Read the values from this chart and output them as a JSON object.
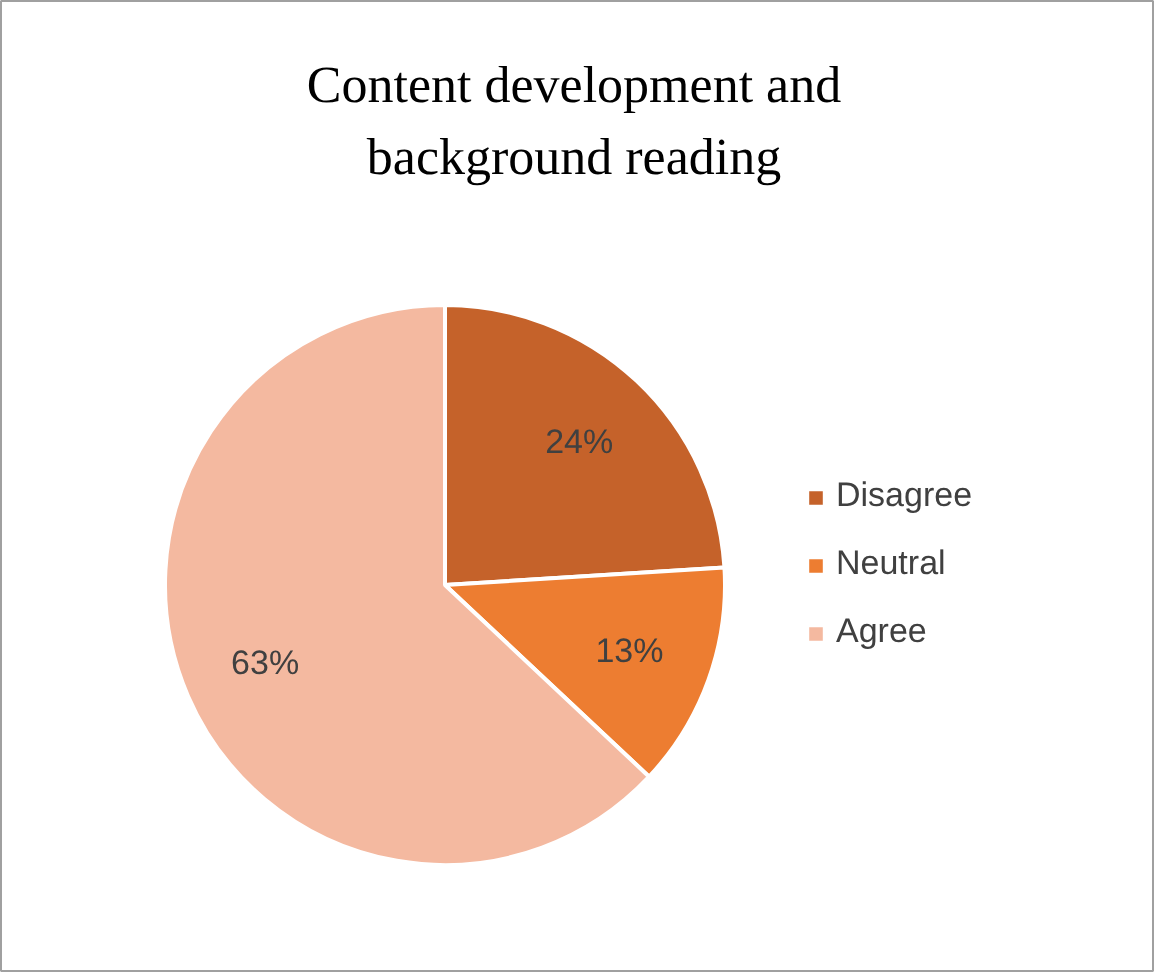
{
  "chart_data": {
    "type": "pie",
    "title": "Content development and\nbackground reading",
    "categories": [
      "Disagree",
      "Neutral",
      "Agree"
    ],
    "values": [
      24,
      13,
      63
    ],
    "colors": [
      "#c5622a",
      "#ed7d31",
      "#f4b9a0"
    ],
    "value_labels": [
      "24%",
      "13%",
      "63%"
    ],
    "legend": "right"
  }
}
